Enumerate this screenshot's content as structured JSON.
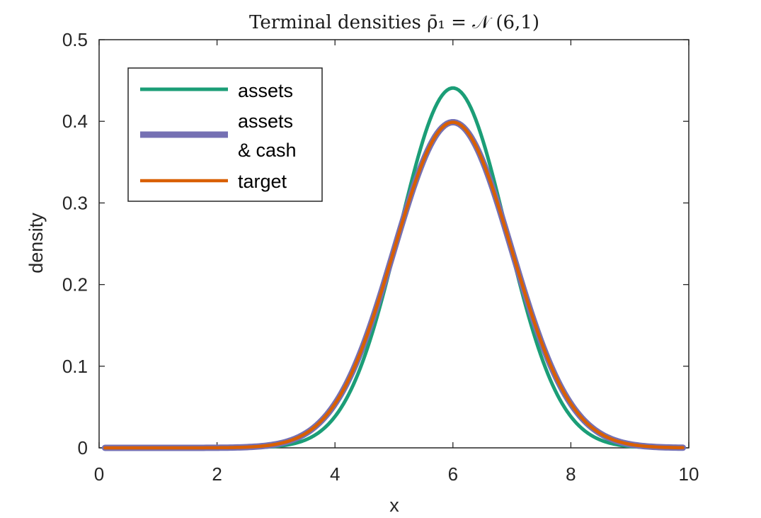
{
  "chart_data": {
    "type": "line",
    "title": "Terminal densities ρ̄₁ = 𝒩 (6,1)",
    "xlabel": "x",
    "ylabel": "density",
    "xlim": [
      0,
      10
    ],
    "ylim": [
      0,
      0.5
    ],
    "xticks": [
      "0",
      "2",
      "4",
      "6",
      "8",
      "10"
    ],
    "yticks": [
      "0",
      "0.1",
      "0.2",
      "0.3",
      "0.4",
      "0.5"
    ],
    "grid": false,
    "legend_position": "top-left",
    "series": [
      {
        "name": "assets",
        "color": "#1b9e77",
        "distribution": {
          "mean": 6.0,
          "sd": 0.905
        },
        "x": [
          0.1,
          9.9
        ]
      },
      {
        "name": "assets & cash",
        "legend_lines": [
          "assets",
          "& cash"
        ],
        "color": "#7570b3",
        "distribution": {
          "mean": 6.0,
          "sd": 1.0
        },
        "x": [
          0.1,
          9.9
        ]
      },
      {
        "name": "target",
        "color": "#d95f02",
        "distribution": {
          "mean": 6.0,
          "sd": 1.0
        },
        "x": [
          0.1,
          9.9
        ]
      }
    ]
  }
}
